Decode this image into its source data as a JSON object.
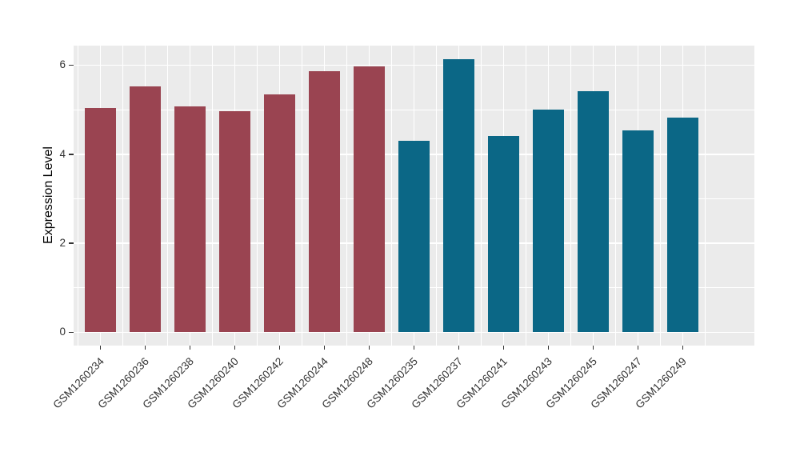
{
  "chart_data": {
    "type": "bar",
    "title": "",
    "xlabel": "",
    "ylabel": "Expression Level",
    "categories": [
      "GSM1260234",
      "GSM1260236",
      "GSM1260238",
      "GSM1260240",
      "GSM1260242",
      "GSM1260244",
      "GSM1260248",
      "GSM1260235",
      "GSM1260237",
      "GSM1260241",
      "GSM1260243",
      "GSM1260245",
      "GSM1260247",
      "GSM1260249"
    ],
    "values": [
      5.04,
      5.52,
      5.08,
      4.96,
      5.34,
      5.86,
      5.97,
      4.31,
      6.13,
      4.41,
      5.0,
      5.41,
      4.53,
      4.83
    ],
    "bar_colors": [
      "#9A4451",
      "#9A4451",
      "#9A4451",
      "#9A4451",
      "#9A4451",
      "#9A4451",
      "#9A4451",
      "#0B6786",
      "#0B6786",
      "#0B6786",
      "#0B6786",
      "#0B6786",
      "#0B6786",
      "#0B6786"
    ],
    "group_colors": {
      "maroon": "#9A4451",
      "teal": "#0B6786"
    },
    "yticks": [
      0,
      2,
      4,
      6
    ],
    "y_minor_ticks": [
      1,
      3,
      5
    ],
    "ylim": [
      -0.3,
      6.44
    ],
    "bar_width_frac": 0.7,
    "grid": true,
    "legend": false,
    "panel_background": "#EBEBEB",
    "grid_color": "#FFFFFF",
    "axis_text_color": "#333333",
    "tick_mark_color": "#333333"
  }
}
